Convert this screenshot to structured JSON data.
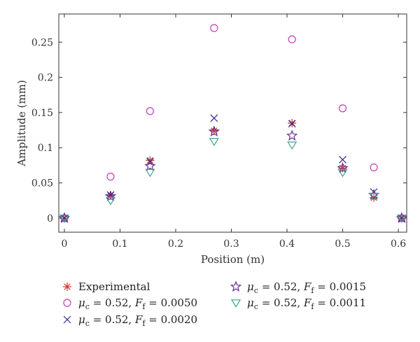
{
  "chart_data": {
    "type": "scatter",
    "xlabel": "Position (m)",
    "ylabel": "Amplitude (mm)",
    "xlim": [
      -0.01,
      0.615
    ],
    "ylim": [
      -0.02,
      0.29
    ],
    "xticks": [
      0,
      0.1,
      0.2,
      0.3,
      0.4,
      0.5,
      0.6
    ],
    "xtick_labels": [
      "0",
      "0.1",
      "0.2",
      "0.3",
      "0.4",
      "0.5",
      "0.6"
    ],
    "yticks": [
      0,
      0.05,
      0.1,
      0.15,
      0.2,
      0.25
    ],
    "ytick_labels": [
      "0",
      "0.05",
      "0.1",
      "0.15",
      "0.2",
      "0.25"
    ],
    "grid": false,
    "legend_position": "bottom",
    "x": [
      0,
      0.083,
      0.154,
      0.269,
      0.409,
      0.5,
      0.556,
      0.606
    ],
    "series": [
      {
        "name": "Experimental",
        "legend_parts": [
          {
            "t": "Experimental",
            "i": false
          }
        ],
        "marker": "asterisk",
        "color": "#c0392b",
        "values": [
          0.0,
          0.032,
          0.082,
          0.124,
          0.135,
          0.071,
          0.029,
          0.0
        ]
      },
      {
        "name": "μc = 0.52, Ff = 0.0050",
        "legend_parts": [
          {
            "t": "μ",
            "i": true
          },
          {
            "t": "c",
            "i": false,
            "sub": true
          },
          {
            "t": " = 0.52, ",
            "i": false
          },
          {
            "t": "F",
            "i": true
          },
          {
            "t": "f",
            "i": false,
            "sub": true
          },
          {
            "t": " = 0.0050",
            "i": false
          }
        ],
        "marker": "circle",
        "color": "#c23fb5",
        "values": [
          0.0,
          0.059,
          0.152,
          0.27,
          0.254,
          0.156,
          0.072,
          0.0
        ]
      },
      {
        "name": "μc = 0.52, Ff = 0.0020",
        "legend_parts": [
          {
            "t": "μ",
            "i": true
          },
          {
            "t": "c",
            "i": false,
            "sub": true
          },
          {
            "t": " = 0.52, ",
            "i": false
          },
          {
            "t": "F",
            "i": true
          },
          {
            "t": "f",
            "i": false,
            "sub": true
          },
          {
            "t": " = 0.0020",
            "i": false
          }
        ],
        "marker": "x",
        "color": "#2d2a8f",
        "values": [
          0.0,
          0.033,
          0.08,
          0.142,
          0.134,
          0.083,
          0.037,
          0.0
        ]
      },
      {
        "name": "μc = 0.52, Ff = 0.0015",
        "legend_parts": [
          {
            "t": "μ",
            "i": true
          },
          {
            "t": "c",
            "i": false,
            "sub": true
          },
          {
            "t": " = 0.52, ",
            "i": false
          },
          {
            "t": "F",
            "i": true
          },
          {
            "t": "f",
            "i": false,
            "sub": true
          },
          {
            "t": " = 0.0015",
            "i": false
          }
        ],
        "marker": "star",
        "color": "#6a2c91",
        "values": [
          0.0,
          0.031,
          0.074,
          0.123,
          0.117,
          0.071,
          0.033,
          0.0
        ]
      },
      {
        "name": "μc = 0.52, Ff = 0.0011",
        "legend_parts": [
          {
            "t": "μ",
            "i": true
          },
          {
            "t": "c",
            "i": false,
            "sub": true
          },
          {
            "t": " = 0.52, ",
            "i": false
          },
          {
            "t": "F",
            "i": true
          },
          {
            "t": "f",
            "i": false,
            "sub": true
          },
          {
            "t": " = 0.0011",
            "i": false
          }
        ],
        "marker": "triangle-down",
        "color": "#3aa58a",
        "values": [
          0.0,
          0.025,
          0.065,
          0.109,
          0.104,
          0.065,
          0.031,
          0.0
        ]
      }
    ]
  }
}
